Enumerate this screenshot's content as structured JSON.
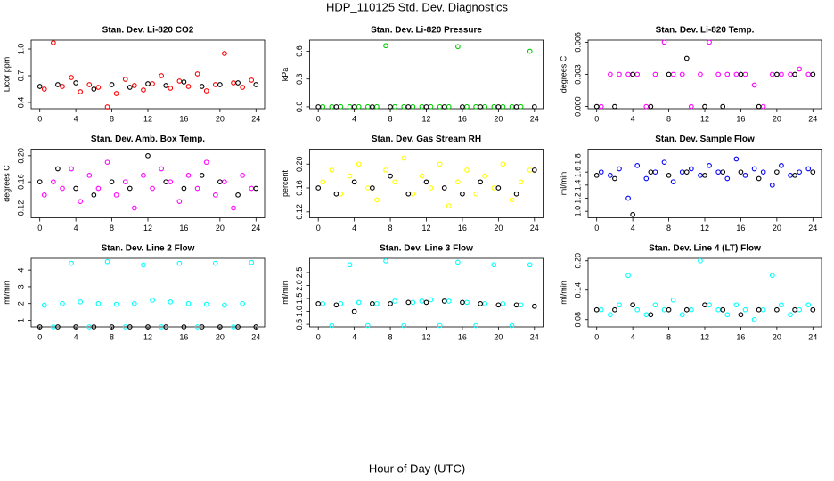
{
  "title": "HDP_110125  Std. Dev. Diagnostics",
  "xlabel": "Hour of Day (UTC)",
  "chart_data": [
    {
      "type": "scatter",
      "title": "Stan. Dev. Li-820 CO2",
      "ylabel": "Licor ppm",
      "xlim": [
        -0.96,
        24.96
      ],
      "xticks": [
        0,
        4,
        8,
        12,
        16,
        20,
        24
      ],
      "ylim": [
        0.33,
        1.1
      ],
      "yticks": [
        0.4,
        0.7,
        {
          "value": 1,
          "label": "1.0"
        }
      ],
      "series": [
        {
          "color": "#ff0000",
          "x": [
            0.5,
            1.5,
            2.5,
            3.5,
            4.5,
            5.5,
            6.5,
            7.5,
            8.5,
            9.5,
            10.5,
            11.5,
            12.5,
            13.5,
            14.5,
            15.5,
            16.5,
            17.5,
            18.5,
            19.5,
            20.5,
            21.5,
            22.5,
            23.5
          ],
          "values": [
            0.55,
            1.07,
            0.58,
            0.68,
            0.52,
            0.6,
            0.57,
            0.35,
            0.5,
            0.66,
            0.59,
            0.54,
            0.61,
            0.7,
            0.56,
            0.64,
            0.58,
            0.72,
            0.53,
            0.6,
            0.95,
            0.62,
            0.57,
            0.65
          ]
        },
        {
          "color": "#000000",
          "x": [
            0,
            2,
            4,
            6,
            8,
            10,
            12,
            14,
            16,
            18,
            20,
            22,
            24
          ],
          "values": [
            0.58,
            0.6,
            0.62,
            0.55,
            0.6,
            0.57,
            0.61,
            0.59,
            0.63,
            0.58,
            0.6,
            0.62,
            0.6
          ]
        }
      ]
    },
    {
      "type": "scatter",
      "title": "Stan. Dev. Li-820 Pressure",
      "ylabel": "kPa",
      "xlim": [
        -0.96,
        24.96
      ],
      "xticks": [
        0,
        4,
        8,
        12,
        16,
        20,
        24
      ],
      "ylim": [
        -0.02,
        0.72
      ],
      "yticks": [
        {
          "value": 0,
          "label": "0.0"
        },
        0.3,
        0.6
      ],
      "series": [
        {
          "color": "#00cc00",
          "x": [
            0.5,
            1.5,
            2.5,
            3.5,
            4.5,
            5.5,
            6.5,
            7.5,
            8.5,
            9.5,
            10.5,
            11.5,
            12.5,
            13.5,
            14.5,
            15.5,
            16.5,
            17.5,
            18.5,
            19.5,
            20.5,
            21.5,
            22.5,
            23.5
          ],
          "values": [
            0.002,
            0.002,
            0.002,
            0.002,
            0.002,
            0.002,
            0.002,
            0.66,
            0.002,
            0.002,
            0.002,
            0.002,
            0.002,
            0.002,
            0.002,
            0.65,
            0.002,
            0.002,
            0.002,
            0.002,
            0.002,
            0.002,
            0.002,
            0.6
          ]
        },
        {
          "color": "#000000",
          "x": [
            0,
            2,
            4,
            6,
            8,
            10,
            12,
            14,
            16,
            18,
            20,
            22,
            24
          ],
          "values": [
            0,
            0,
            0,
            0,
            0,
            0,
            0,
            0,
            0,
            0,
            0,
            0,
            0
          ]
        }
      ]
    },
    {
      "type": "scatter",
      "title": "Stan. Dev. Li-820 Temp.",
      "ylabel": "degrees C",
      "xlim": [
        -0.96,
        24.96
      ],
      "xticks": [
        0,
        4,
        8,
        12,
        16,
        20,
        24
      ],
      "ylim": [
        -0.0002,
        0.0062
      ],
      "yticks": [
        {
          "value": 0,
          "label": "0.000"
        },
        {
          "value": 0.003,
          "label": "0.003"
        },
        {
          "value": 0.006,
          "label": "0.006"
        }
      ],
      "series": [
        {
          "color": "#ff00ff",
          "x": [
            0.5,
            1.5,
            2.5,
            3.5,
            4.5,
            5.5,
            6.5,
            7.5,
            8.5,
            9.5,
            10.5,
            11.5,
            12.5,
            13.5,
            14.5,
            15.5,
            16.5,
            17.5,
            18.5,
            19.5,
            20.5,
            21.5,
            22.5,
            23.5
          ],
          "values": [
            0,
            0.003,
            0.003,
            0.003,
            0.003,
            0,
            0.003,
            0.006,
            0.003,
            0.003,
            0,
            0.003,
            0.006,
            0.003,
            0.003,
            0.003,
            0.003,
            0.002,
            0,
            0.003,
            0.003,
            0.003,
            0.0035,
            0.003
          ]
        },
        {
          "color": "#000000",
          "x": [
            0,
            2,
            4,
            6,
            8,
            10,
            12,
            14,
            16,
            18,
            20,
            22,
            24
          ],
          "values": [
            0,
            0,
            0.003,
            0,
            0.003,
            0.0045,
            0,
            0,
            0.003,
            0,
            0.003,
            0.003,
            0.003
          ]
        }
      ]
    },
    {
      "type": "scatter",
      "title": "Stan. Dev. Amb. Box Temp.",
      "ylabel": "degrees C",
      "xlim": [
        -0.96,
        24.96
      ],
      "xticks": [
        0,
        4,
        8,
        12,
        16,
        20,
        24
      ],
      "ylim": [
        0.105,
        0.21
      ],
      "yticks": [
        0.12,
        0.16,
        {
          "value": 0.2,
          "label": "0.20"
        }
      ],
      "series": [
        {
          "color": "#ff00ff",
          "x": [
            0.5,
            1.5,
            2.5,
            3.5,
            4.5,
            5.5,
            6.5,
            7.5,
            8.5,
            9.5,
            10.5,
            11.5,
            12.5,
            13.5,
            14.5,
            15.5,
            16.5,
            17.5,
            18.5,
            19.5,
            20.5,
            21.5,
            22.5,
            23.5
          ],
          "values": [
            0.14,
            0.16,
            0.15,
            0.18,
            0.13,
            0.17,
            0.15,
            0.19,
            0.14,
            0.16,
            0.12,
            0.17,
            0.15,
            0.18,
            0.16,
            0.13,
            0.17,
            0.15,
            0.19,
            0.14,
            0.16,
            0.12,
            0.17,
            0.15
          ]
        },
        {
          "color": "#000000",
          "x": [
            0,
            2,
            4,
            6,
            8,
            10,
            12,
            14,
            16,
            18,
            20,
            22,
            24
          ],
          "values": [
            0.16,
            0.18,
            0.15,
            0.14,
            0.16,
            0.15,
            0.2,
            0.16,
            0.15,
            0.17,
            0.16,
            0.14,
            0.15
          ]
        }
      ]
    },
    {
      "type": "scatter",
      "title": "Stan. Dev. Gas Stream RH",
      "ylabel": "percent",
      "xlim": [
        -0.96,
        24.96
      ],
      "xticks": [
        0,
        4,
        8,
        12,
        16,
        20,
        24
      ],
      "ylim": [
        0.11,
        0.225
      ],
      "yticks": [
        0.12,
        0.16,
        {
          "value": 0.2,
          "label": "0.20"
        }
      ],
      "series": [
        {
          "color": "#ffff00",
          "x": [
            0.5,
            1.5,
            2.5,
            3.5,
            4.5,
            5.5,
            6.5,
            7.5,
            8.5,
            9.5,
            10.5,
            11.5,
            12.5,
            13.5,
            14.5,
            15.5,
            16.5,
            17.5,
            18.5,
            19.5,
            20.5,
            21.5,
            22.5,
            23.5
          ],
          "values": [
            0.17,
            0.19,
            0.15,
            0.18,
            0.2,
            0.16,
            0.14,
            0.19,
            0.17,
            0.21,
            0.15,
            0.18,
            0.16,
            0.2,
            0.13,
            0.17,
            0.19,
            0.15,
            0.18,
            0.16,
            0.2,
            0.14,
            0.17,
            0.19
          ]
        },
        {
          "color": "#000000",
          "x": [
            0,
            2,
            4,
            6,
            8,
            10,
            12,
            14,
            16,
            18,
            20,
            22,
            24
          ],
          "values": [
            0.16,
            0.15,
            0.17,
            0.16,
            0.18,
            0.15,
            0.17,
            0.16,
            0.15,
            0.17,
            0.16,
            0.15,
            0.19
          ]
        }
      ]
    },
    {
      "type": "scatter",
      "title": "Stan. Dev. Sample Flow",
      "ylabel": "ml/min",
      "xlim": [
        -0.96,
        24.96
      ],
      "xticks": [
        0,
        4,
        8,
        12,
        16,
        20,
        24
      ],
      "ylim": [
        0.9,
        1.95
      ],
      "yticks": [
        {
          "value": 1,
          "label": "1.0"
        },
        1.2,
        1.4,
        1.6,
        1.8
      ],
      "series": [
        {
          "color": "#0000ff",
          "x": [
            0.5,
            1.5,
            2.5,
            3.5,
            4.5,
            5.5,
            6.5,
            7.5,
            8.5,
            9.5,
            10.5,
            11.5,
            12.5,
            13.5,
            14.5,
            15.5,
            16.5,
            17.5,
            18.5,
            19.5,
            20.5,
            21.5,
            22.5,
            23.5
          ],
          "values": [
            1.6,
            1.55,
            1.65,
            1.2,
            1.7,
            1.5,
            1.6,
            1.75,
            1.45,
            1.6,
            1.65,
            1.55,
            1.7,
            1.6,
            1.5,
            1.8,
            1.55,
            1.65,
            1.6,
            1.4,
            1.7,
            1.55,
            1.6,
            1.65
          ]
        },
        {
          "color": "#000000",
          "x": [
            0,
            2,
            4,
            6,
            8,
            10,
            12,
            14,
            16,
            18,
            20,
            22,
            24
          ],
          "values": [
            1.55,
            1.5,
            0.95,
            1.6,
            1.55,
            1.6,
            1.55,
            1.6,
            1.6,
            1.5,
            1.6,
            1.55,
            1.6
          ]
        }
      ]
    },
    {
      "type": "scatter",
      "title": "Stan. Dev. Line 2 Flow",
      "ylabel": "ml/min",
      "xlim": [
        -0.96,
        24.96
      ],
      "xticks": [
        0,
        4,
        8,
        12,
        16,
        20,
        24
      ],
      "ylim": [
        0.6,
        4.7
      ],
      "yticks": [
        1,
        2,
        3,
        4
      ],
      "series": [
        {
          "color": "#00ffff",
          "x": [
            0.5,
            1.5,
            2.5,
            3.5,
            4.5,
            5.5,
            6.5,
            7.5,
            8.5,
            9.5,
            10.5,
            11.5,
            12.5,
            13.5,
            14.5,
            15.5,
            16.5,
            17.5,
            18.5,
            19.5,
            20.5,
            21.5,
            22.5,
            23.5
          ],
          "values": [
            1.9,
            0.6,
            2.0,
            4.4,
            2.1,
            0.6,
            2.0,
            4.5,
            1.95,
            0.6,
            2.0,
            4.3,
            2.2,
            0.6,
            2.1,
            4.4,
            2.0,
            0.6,
            1.95,
            4.4,
            1.9,
            0.6,
            2.0,
            4.45
          ]
        },
        {
          "color": "#000000",
          "x": [
            0,
            2,
            4,
            6,
            8,
            10,
            12,
            14,
            16,
            18,
            20,
            22,
            24
          ],
          "values": [
            0.6,
            0.6,
            0.6,
            0.6,
            0.6,
            0.6,
            0.6,
            0.6,
            0.6,
            0.6,
            0.6,
            0.6,
            0.6
          ]
        }
      ]
    },
    {
      "type": "scatter",
      "title": "Stan. Dev. Line 3 Flow",
      "ylabel": "ml/min",
      "xlim": [
        -0.96,
        24.96
      ],
      "xticks": [
        0,
        4,
        8,
        12,
        16,
        20,
        24
      ],
      "ylim": [
        0.4,
        3.05
      ],
      "yticks": [
        0.5,
        {
          "value": 1,
          "label": "1.0"
        },
        1.5,
        {
          "value": 2,
          "label": "2.0"
        },
        2.5
      ],
      "series": [
        {
          "color": "#00ffff",
          "x": [
            0.5,
            1.5,
            2.5,
            3.5,
            4.5,
            5.5,
            6.5,
            7.5,
            8.5,
            9.5,
            10.5,
            11.5,
            12.5,
            13.5,
            14.5,
            15.5,
            16.5,
            17.5,
            18.5,
            19.5,
            20.5,
            21.5,
            22.5,
            23.5
          ],
          "values": [
            1.3,
            0.45,
            1.3,
            2.8,
            1.35,
            0.45,
            1.3,
            2.95,
            1.4,
            0.45,
            1.35,
            1.4,
            1.45,
            0.45,
            1.4,
            2.9,
            1.35,
            0.45,
            1.3,
            2.8,
            1.3,
            0.45,
            1.25,
            2.8
          ]
        },
        {
          "color": "#000000",
          "x": [
            0,
            2,
            4,
            6,
            8,
            10,
            12,
            14,
            16,
            18,
            20,
            22,
            24
          ],
          "values": [
            1.3,
            1.25,
            1.0,
            1.3,
            1.3,
            1.35,
            1.35,
            1.4,
            1.35,
            1.3,
            1.25,
            1.25,
            1.2
          ]
        }
      ]
    },
    {
      "type": "scatter",
      "title": "Stan. Dev. Line 4 (LT) Flow",
      "ylabel": "ml/min",
      "xlim": [
        -0.96,
        24.96
      ],
      "xticks": [
        0,
        4,
        8,
        12,
        16,
        20,
        24
      ],
      "ylim": [
        0.065,
        0.205
      ],
      "yticks": [
        0.08,
        0.14,
        {
          "value": 0.2,
          "label": "0.20"
        }
      ],
      "series": [
        {
          "color": "#00ffff",
          "x": [
            0.5,
            1.5,
            2.5,
            3.5,
            4.5,
            5.5,
            6.5,
            7.5,
            8.5,
            9.5,
            10.5,
            11.5,
            12.5,
            13.5,
            14.5,
            15.5,
            16.5,
            17.5,
            18.5,
            19.5,
            20.5,
            21.5,
            22.5,
            23.5
          ],
          "values": [
            0.1,
            0.09,
            0.11,
            0.17,
            0.1,
            0.09,
            0.11,
            0.1,
            0.12,
            0.09,
            0.1,
            0.2,
            0.11,
            0.1,
            0.09,
            0.11,
            0.1,
            0.08,
            0.1,
            0.17,
            0.11,
            0.09,
            0.1,
            0.11
          ]
        },
        {
          "color": "#000000",
          "x": [
            0,
            2,
            4,
            6,
            8,
            10,
            12,
            14,
            16,
            18,
            20,
            22,
            24
          ],
          "values": [
            0.1,
            0.1,
            0.11,
            0.09,
            0.1,
            0.1,
            0.11,
            0.1,
            0.09,
            0.1,
            0.1,
            0.1,
            0.1
          ]
        }
      ]
    }
  ]
}
